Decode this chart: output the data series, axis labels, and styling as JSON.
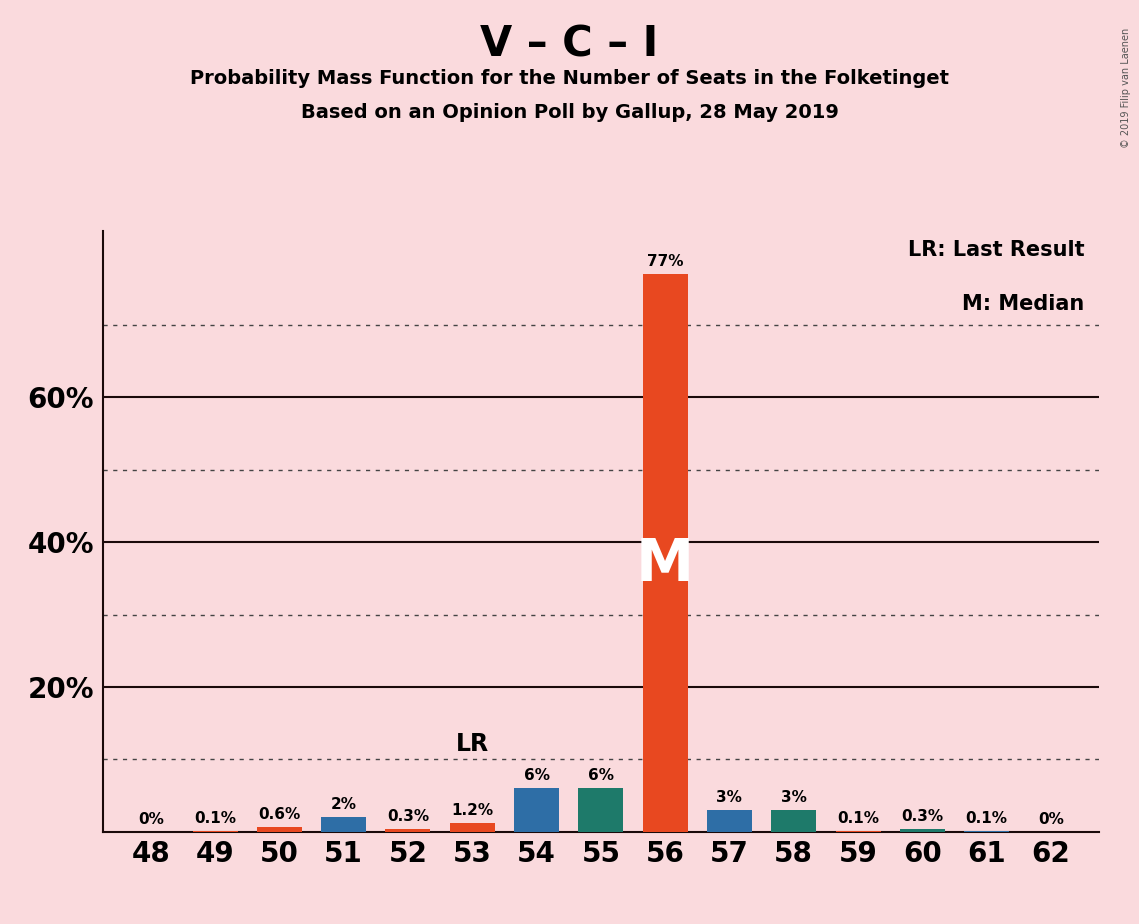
{
  "title": "V – C – I",
  "subtitle1": "Probability Mass Function for the Number of Seats in the Folketinget",
  "subtitle2": "Based on an Opinion Poll by Gallup, 28 May 2019",
  "background_color": "#FADADD",
  "seats": [
    48,
    49,
    50,
    51,
    52,
    53,
    54,
    55,
    56,
    57,
    58,
    59,
    60,
    61,
    62
  ],
  "values": [
    0.0,
    0.1,
    0.6,
    2.0,
    0.3,
    1.2,
    6.0,
    6.0,
    77.0,
    3.0,
    3.0,
    0.1,
    0.3,
    0.1,
    0.0
  ],
  "labels": [
    "0%",
    "0.1%",
    "0.6%",
    "2%",
    "0.3%",
    "1.2%",
    "6%",
    "6%",
    "77%",
    "3%",
    "3%",
    "0.1%",
    "0.3%",
    "0.1%",
    "0%"
  ],
  "bar_colors": [
    "#E84820",
    "#E84820",
    "#E84820",
    "#2E6EA6",
    "#E84820",
    "#E84820",
    "#2E6EA6",
    "#1E7A6A",
    "#E84820",
    "#2E6EA6",
    "#1E7A6A",
    "#E84820",
    "#1E7A6A",
    "#2E6EA6",
    "#E84820"
  ],
  "lr_seat": 53,
  "median_seat": 56,
  "median_label": "M",
  "lr_label": "LR",
  "legend_lr": "LR: Last Result",
  "legend_m": "M: Median",
  "ylim": [
    0,
    83
  ],
  "solid_gridlines": [
    20,
    40,
    60
  ],
  "dotted_gridlines": [
    10,
    30,
    50,
    70
  ],
  "ytick_positions": [
    20,
    40,
    60
  ],
  "ytick_labels": [
    "20%",
    "40%",
    "60%"
  ],
  "copyright": "© 2019 Filip van Laenen",
  "dotted_gridline_color": "#444444",
  "solid_gridline_color": "#1a0a0a"
}
